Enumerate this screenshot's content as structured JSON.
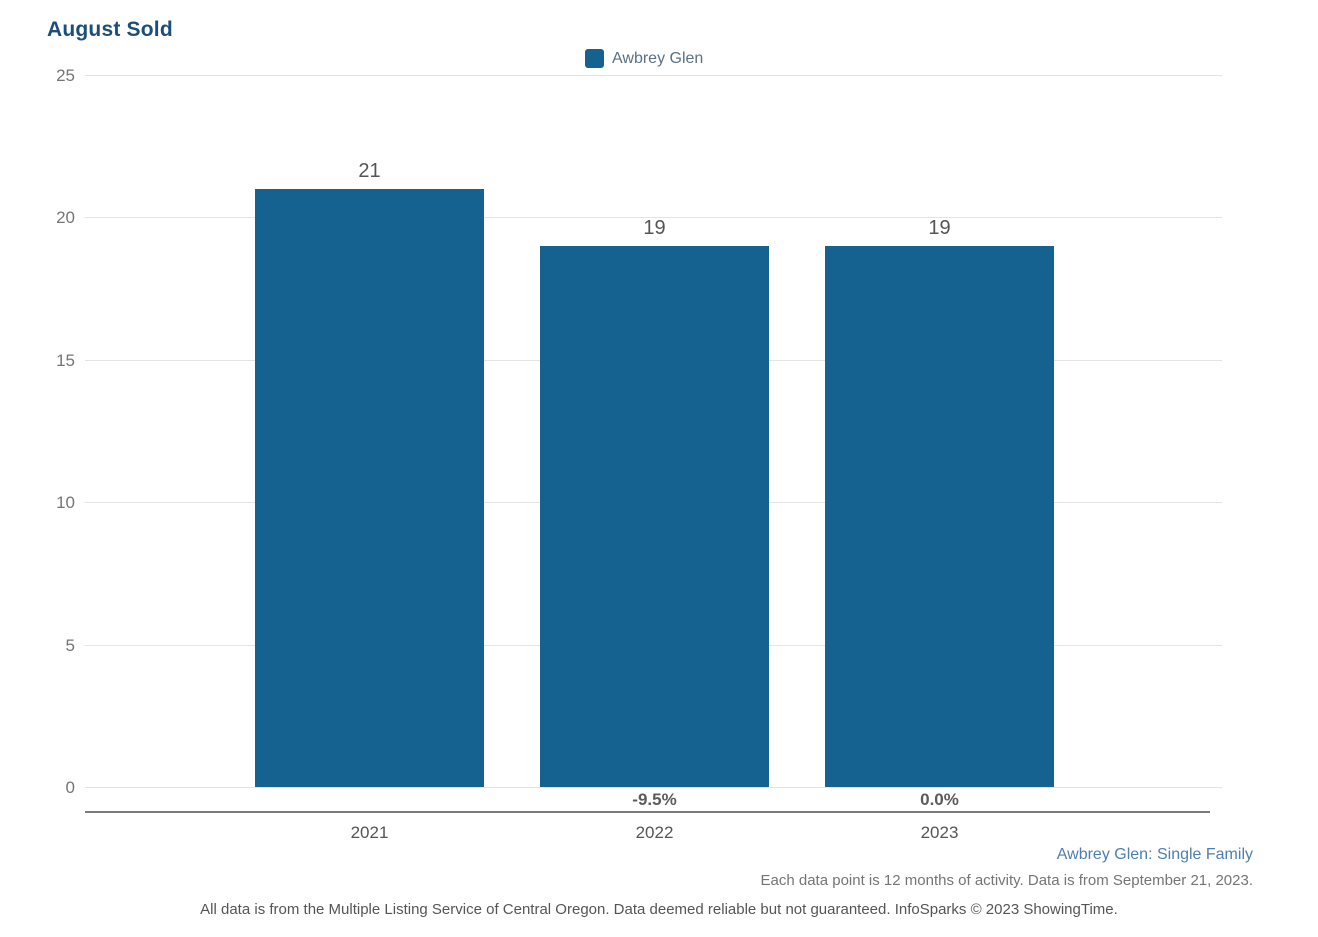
{
  "title": "August Sold",
  "legend": {
    "label": "Awbrey Glen"
  },
  "chart_data": {
    "type": "bar",
    "title": "August Sold",
    "categories": [
      "2021",
      "2022",
      "2023"
    ],
    "values": [
      21,
      19,
      19
    ],
    "bar_value_labels": [
      "21",
      "19",
      "19"
    ],
    "pct_change_labels": [
      "",
      "-9.5%",
      "0.0%"
    ],
    "series": [
      {
        "name": "Awbrey Glen",
        "values": [
          21,
          19,
          19
        ]
      }
    ],
    "xlabel": "",
    "ylabel": "",
    "ylim": [
      0,
      25
    ],
    "yticks": [
      25,
      20,
      15,
      10,
      5,
      0
    ],
    "grid": true,
    "legend_position": "top",
    "bar_color": "#15618f"
  },
  "footnotes": {
    "series_note": "Awbrey Glen: Single Family",
    "data_note": "Each data point is 12 months of activity. Data is from September 21, 2023.",
    "disclaimer": "All data is from the Multiple Listing Service of Central Oregon. Data deemed reliable but not guaranteed. InfoSparks © 2023 ShowingTime."
  },
  "colors": {
    "title_text": "#1d4e79",
    "bar": "#15618f",
    "legend_text": "#5a7186",
    "series_note_text": "#4e7fb0",
    "tick_text": "#757575",
    "value_label_text": "#555555",
    "gridline": "#e4e4e4",
    "axis_line": "#7a7a7a"
  }
}
